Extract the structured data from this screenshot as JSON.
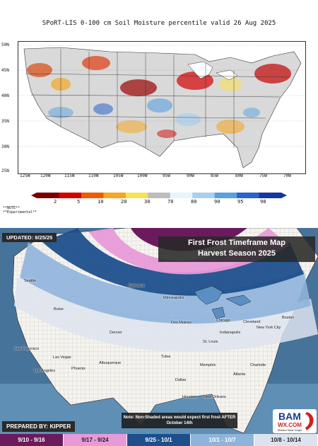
{
  "soil_map": {
    "title": "SPoRT-LIS 0-100 cm Soil Moisture percentile valid 26 Aug 2025",
    "lat_labels": [
      "50N",
      "45N",
      "40N",
      "35N",
      "30N",
      "25N"
    ],
    "lon_labels": [
      "125W",
      "120W",
      "115W",
      "110W",
      "105W",
      "100W",
      "95W",
      "90W",
      "85W",
      "80W",
      "75W",
      "70W"
    ],
    "colorbar": {
      "labels": [
        "2",
        "5",
        "10",
        "20",
        "30",
        "70",
        "80",
        "90",
        "95",
        "98"
      ],
      "colors": [
        "#7a0000",
        "#d40000",
        "#f05a00",
        "#f5a623",
        "#f7e15a",
        "#bdbdbd",
        "#e8f4fb",
        "#a8cfee",
        "#5a9fe0",
        "#2b63c8",
        "#1537a0"
      ]
    },
    "notes": [
      "**NOTE**",
      "**Experimental**"
    ]
  },
  "frost_map": {
    "title_line1": "First Frost Timeframe Map",
    "title_line2": "Harvest Season 2025",
    "updated": "UPDATED: 8/25/25",
    "prepared_by": "PREPARED BY: KIPPER",
    "note": "Note: Non-Shaded areas would expect first frost AFTER October 14th",
    "logo_text": "BAM",
    "logo_sub": "WX.COM",
    "logo_tag": "Weather Made Simple",
    "cities": [
      {
        "name": "Seattle"
      },
      {
        "name": "Boise"
      },
      {
        "name": "Bismarck"
      },
      {
        "name": "Minneapolis"
      },
      {
        "name": "Des Moines"
      },
      {
        "name": "Chicago"
      },
      {
        "name": "Cleveland"
      },
      {
        "name": "Boston"
      },
      {
        "name": "New York City"
      },
      {
        "name": "Denver"
      },
      {
        "name": "Indianapolis"
      },
      {
        "name": "St. Louis"
      },
      {
        "name": "San Francisco"
      },
      {
        "name": "Las Vegas"
      },
      {
        "name": "Phoenix"
      },
      {
        "name": "Los Angeles"
      },
      {
        "name": "Albuquerque"
      },
      {
        "name": "Tulsa"
      },
      {
        "name": "Memphis"
      },
      {
        "name": "Charlotte"
      },
      {
        "name": "Atlanta"
      },
      {
        "name": "Dallas"
      },
      {
        "name": "Houston"
      },
      {
        "name": "New Orleans"
      }
    ],
    "legend": [
      {
        "label": "9/10 - 9/16",
        "color": "#6b1a5e",
        "text": "#ffffff"
      },
      {
        "label": "9/17 - 9/24",
        "color": "#e79ad8",
        "text": "#222222"
      },
      {
        "label": "9/25 - 10/1",
        "color": "#1d4f8c",
        "text": "#ffffff"
      },
      {
        "label": "10/1 - 10/7",
        "color": "#8fb4dc",
        "text": "#ffffff"
      },
      {
        "label": "10/8 - 10/14",
        "color": "#dde3ee",
        "text": "#222222"
      }
    ]
  }
}
